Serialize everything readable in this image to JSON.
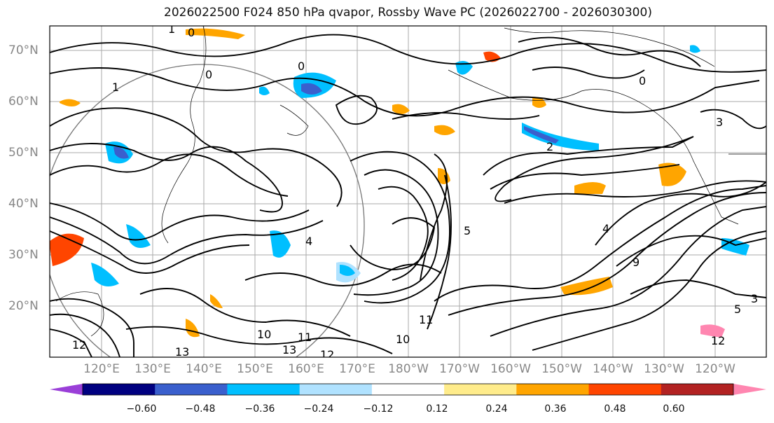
{
  "title": "2026022500 F024 850 hPa qvapor, Rossby Wave PC (2026022700 - 2026030300)",
  "map": {
    "lat_labels": [
      "70°N",
      "60°N",
      "50°N",
      "40°N",
      "30°N",
      "20°N"
    ],
    "lon_labels": [
      "120°E",
      "130°E",
      "140°E",
      "150°E",
      "160°E",
      "170°E",
      "180°W",
      "170°W",
      "160°W",
      "150°W",
      "140°W",
      "130°W",
      "120°W"
    ],
    "contour_labels": [
      "1",
      "0",
      "0",
      "1",
      "0",
      "0",
      "3",
      "2",
      "5",
      "4",
      "9",
      "10",
      "11",
      "12",
      "13",
      "12",
      "13",
      "10",
      "11",
      "12",
      "5",
      "4",
      "3"
    ]
  },
  "colorbar": {
    "colors": [
      "#9a3fd8",
      "#000080",
      "#3a5fcd",
      "#00bfff",
      "#b0e2ff",
      "#ffffff",
      "#ffec8b",
      "#ffa500",
      "#ff4500",
      "#b22222",
      "#ff86b0"
    ],
    "tick_labels": [
      "−0.60",
      "−0.48",
      "−0.36",
      "−0.24",
      "−0.12",
      "0.12",
      "0.24",
      "0.36",
      "0.48",
      "0.60"
    ]
  }
}
